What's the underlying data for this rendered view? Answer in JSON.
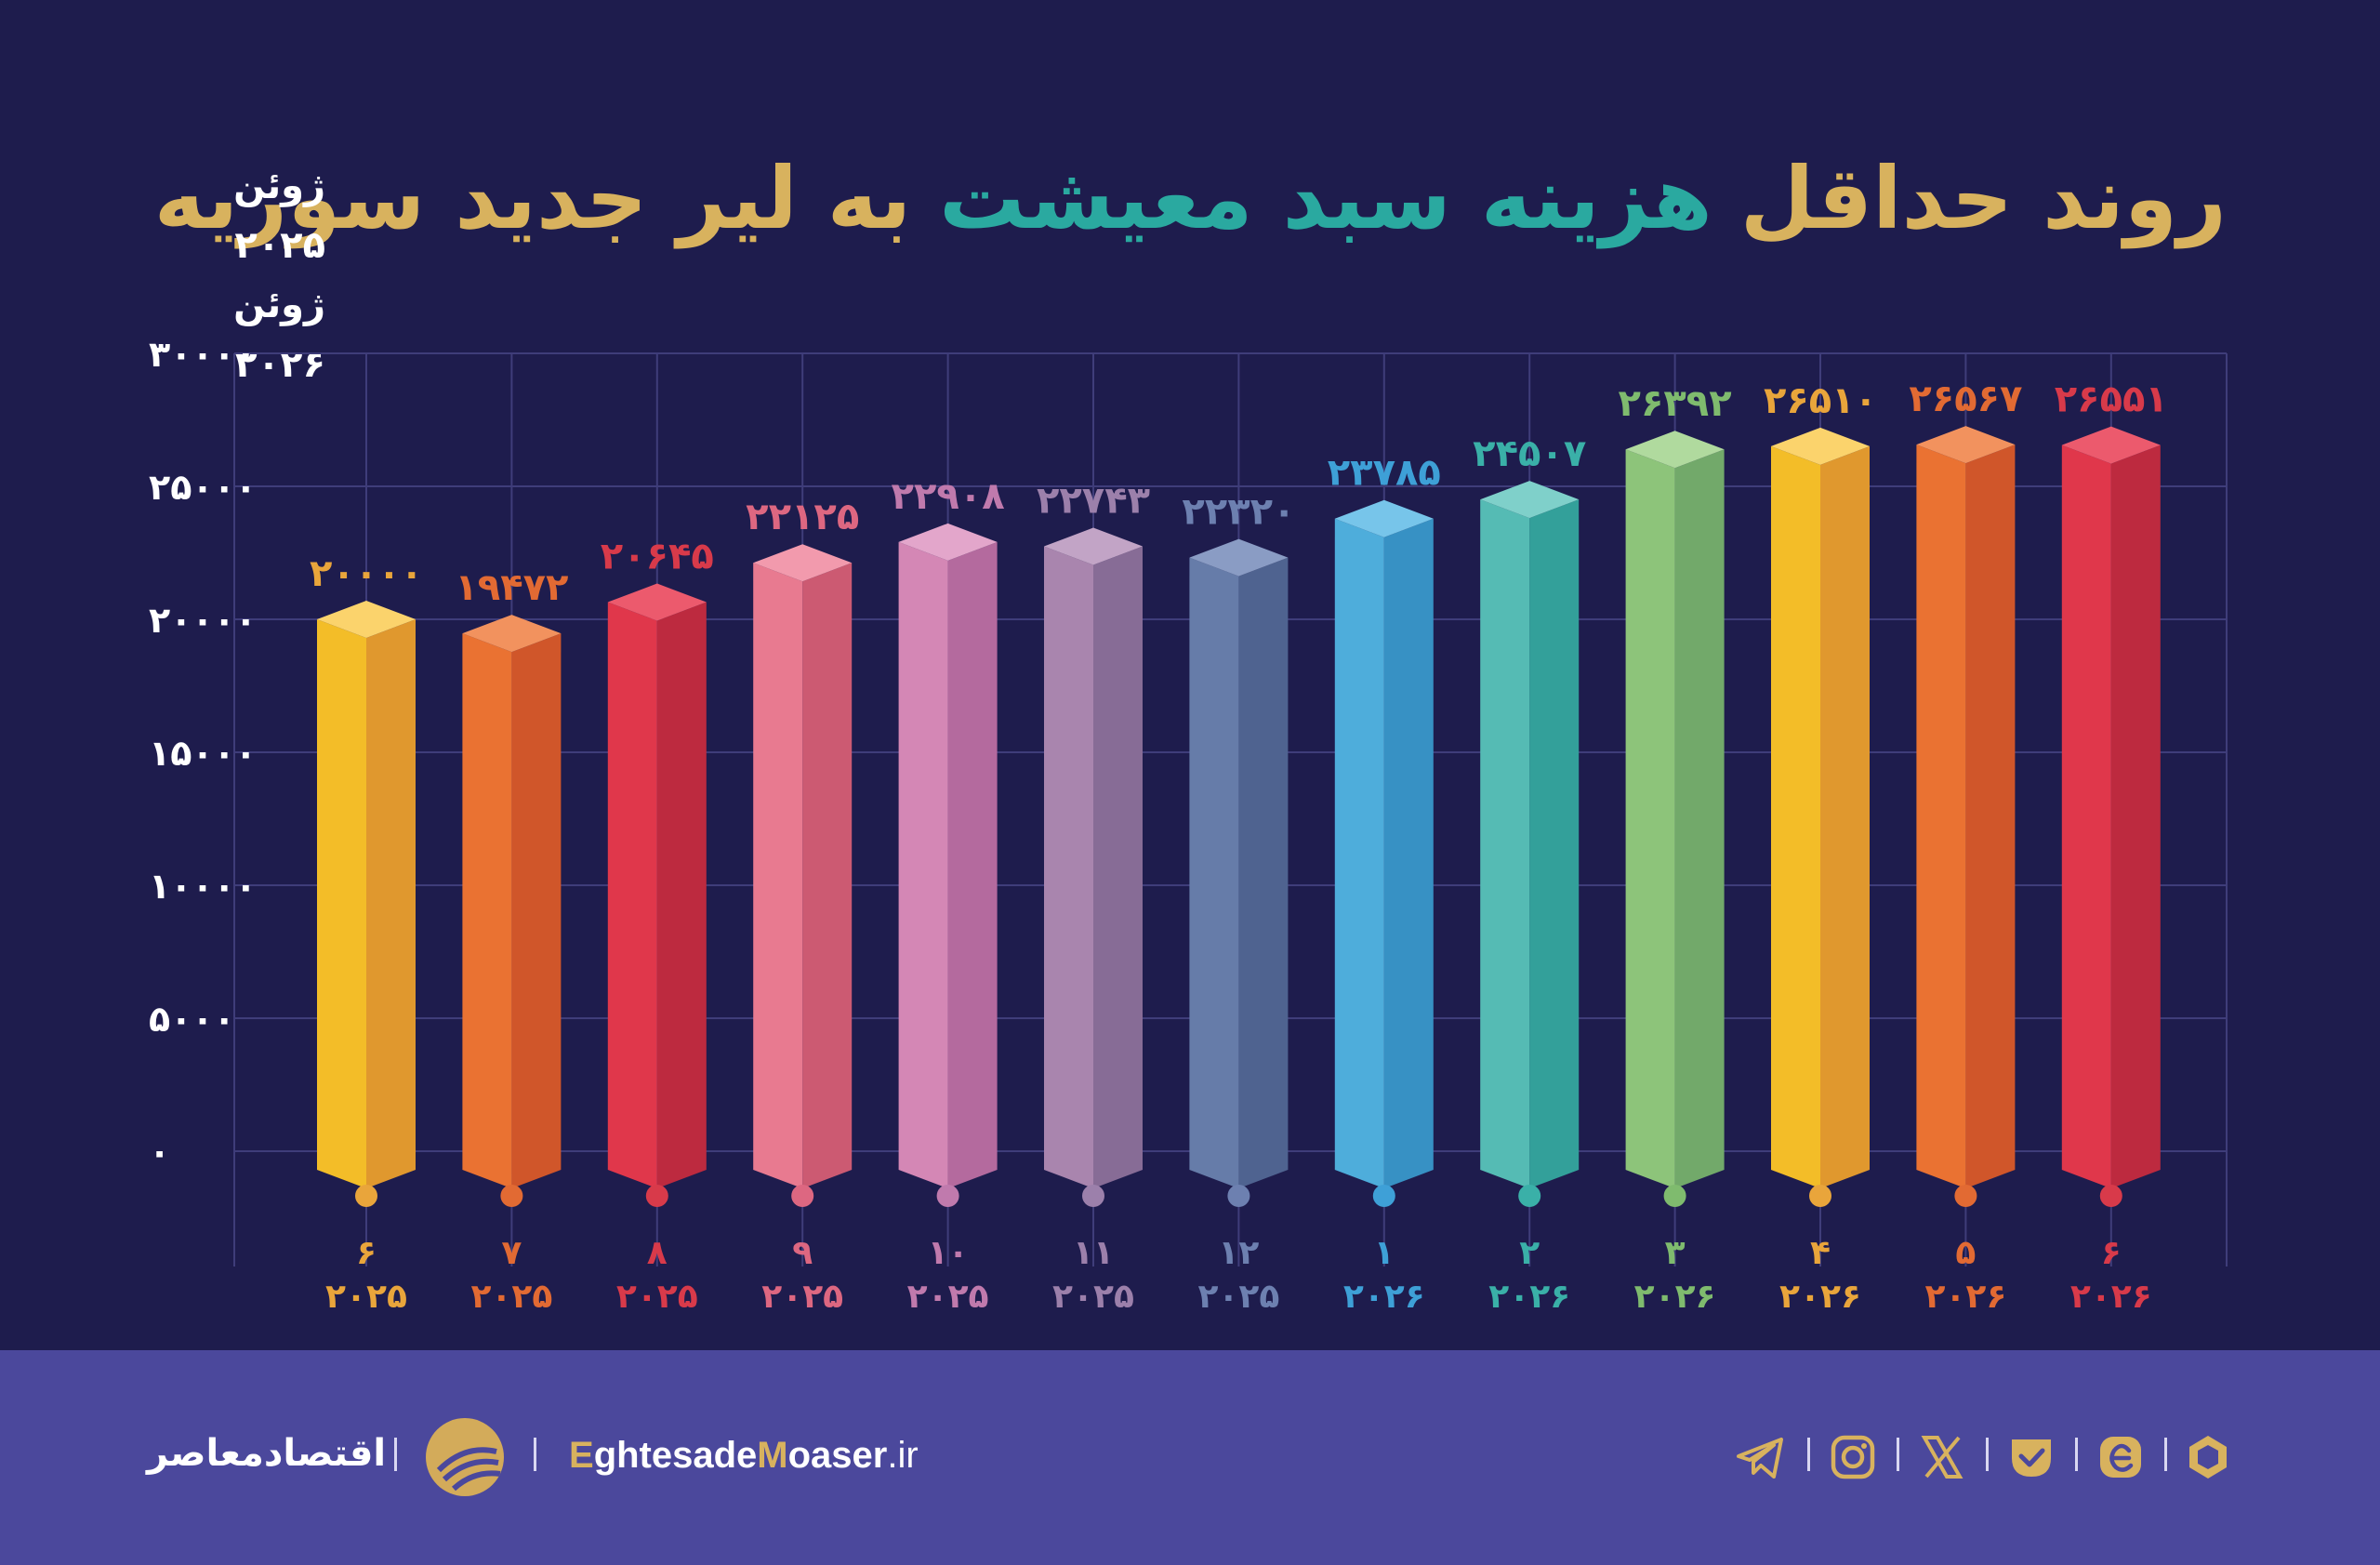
{
  "title": {
    "part1": "روند حداقل",
    "part2": "هزینه سبد معیشت",
    "part3": "به لیر جدید سوریه"
  },
  "legend": {
    "line1": "ژوئن ۲۰۲۵",
    "line2": "ژوئن ۲۰۲۶"
  },
  "chart_data": {
    "type": "bar",
    "ylim": [
      0,
      30000
    ],
    "y_ticks": [
      "۰",
      "۵۰۰۰",
      "۱۰۰۰۰",
      "۱۵۰۰۰",
      "۲۰۰۰۰",
      "۲۵۰۰۰",
      "۳۰۰۰۰"
    ],
    "y_tick_values": [
      0,
      5000,
      10000,
      15000,
      20000,
      25000,
      30000
    ],
    "grid": true,
    "categories": [
      "۶/۲۰۲۵",
      "۷/۲۰۲۵",
      "۸/۲۰۲۵",
      "۹/۲۰۲۵",
      "۱۰/۲۰۲۵",
      "۱۱/۲۰۲۵",
      "۱۲/۲۰۲۵",
      "۱/۲۰۲۶",
      "۲/۲۰۲۶",
      "۳/۲۰۲۶",
      "۴/۲۰۲۶",
      "۵/۲۰۲۶",
      "۶/۲۰۲۶"
    ],
    "bars": [
      {
        "month": "۶",
        "year": "۲۰۲۵",
        "value": 20000,
        "label": "۲۰۰۰۰",
        "color": "#f3bd28",
        "side": "#e0982e",
        "top": "#fbd36c",
        "label_color": "#e9a53b"
      },
      {
        "month": "۷",
        "year": "۲۰۲۵",
        "value": 19472,
        "label": "۱۹۴۷۲",
        "color": "#ea7232",
        "side": "#d0562a",
        "top": "#f2925e",
        "label_color": "#e26a33"
      },
      {
        "month": "۸",
        "year": "۲۰۲۵",
        "value": 20645,
        "label": "۲۰۶۴۵",
        "color": "#e0374b",
        "side": "#bd2a3f",
        "top": "#ec5a6d",
        "label_color": "#d83a4a"
      },
      {
        "month": "۹",
        "year": "۲۰۲۵",
        "value": 22125,
        "label": "۲۲۱۲۵",
        "color": "#e87a90",
        "side": "#cc5a72",
        "top": "#f29aad",
        "label_color": "#dd6781"
      },
      {
        "month": "۱۰",
        "year": "۲۰۲۵",
        "value": 22908,
        "label": "۲۲۹۰۸",
        "color": "#d487b5",
        "side": "#b46a9e",
        "top": "#e3a6cb",
        "label_color": "#c07aad"
      },
      {
        "month": "۱۱",
        "year": "۲۰۲۵",
        "value": 22743,
        "label": "۲۲۷۴۳",
        "color": "#a985ae",
        "side": "#876c96",
        "top": "#c2a4c6",
        "label_color": "#9c80ab"
      },
      {
        "month": "۱۲",
        "year": "۲۰۲۵",
        "value": 22320,
        "label": "۲۲۳۲۰",
        "color": "#667ca9",
        "side": "#4f6390",
        "top": "#8a9cc4",
        "label_color": "#6d80b0"
      },
      {
        "month": "۱",
        "year": "۲۰۲۶",
        "value": 23785,
        "label": "۲۳۷۸۵",
        "color": "#4eaddb",
        "side": "#3791c4",
        "top": "#77c5ea",
        "label_color": "#3ea0d7"
      },
      {
        "month": "۲",
        "year": "۲۰۲۶",
        "value": 24507,
        "label": "۲۴۵۰۷",
        "color": "#55bbb4",
        "side": "#33a09a",
        "top": "#7fd0ca",
        "label_color": "#3ab0a8"
      },
      {
        "month": "۳",
        "year": "۲۰۲۶",
        "value": 26392,
        "label": "۲۶۳۹۲",
        "color": "#8dc47a",
        "side": "#72a96a",
        "top": "#b0da9e",
        "label_color": "#7fbb6e"
      },
      {
        "month": "۴",
        "year": "۲۰۲۶",
        "value": 26510,
        "label": "۲۶۵۱۰",
        "color": "#f3bd28",
        "side": "#e0982e",
        "top": "#fbd36c",
        "label_color": "#e9a53b"
      },
      {
        "month": "۵",
        "year": "۲۰۲۶",
        "value": 26567,
        "label": "۲۶۵۶۷",
        "color": "#ea7232",
        "side": "#d0562a",
        "top": "#f2925e",
        "label_color": "#e26a33"
      },
      {
        "month": "۶",
        "year": "۲۰۲۶",
        "value": 26551,
        "label": "۲۶۵۵۱",
        "color": "#e0374b",
        "side": "#bd2a3f",
        "top": "#ec5a6d",
        "label_color": "#d83a4a"
      }
    ]
  },
  "footer": {
    "brand_fa": "اقتصادمعاصر",
    "site_e": "E",
    "site_mid": "ghtesade",
    "site_m": "M",
    "site_rest": "oaser",
    "site_tld": ".ir",
    "social_icons": [
      "hexagon-logo-icon",
      "eitaa-icon",
      "bale-icon",
      "x-icon",
      "instagram-icon",
      "telegram-icon"
    ]
  },
  "colors": {
    "background": "#1e1c4d",
    "footer": "#4b489c",
    "gold": "#d8b25e",
    "teal": "#2aa9a0",
    "grid": "#3f3d7a"
  }
}
